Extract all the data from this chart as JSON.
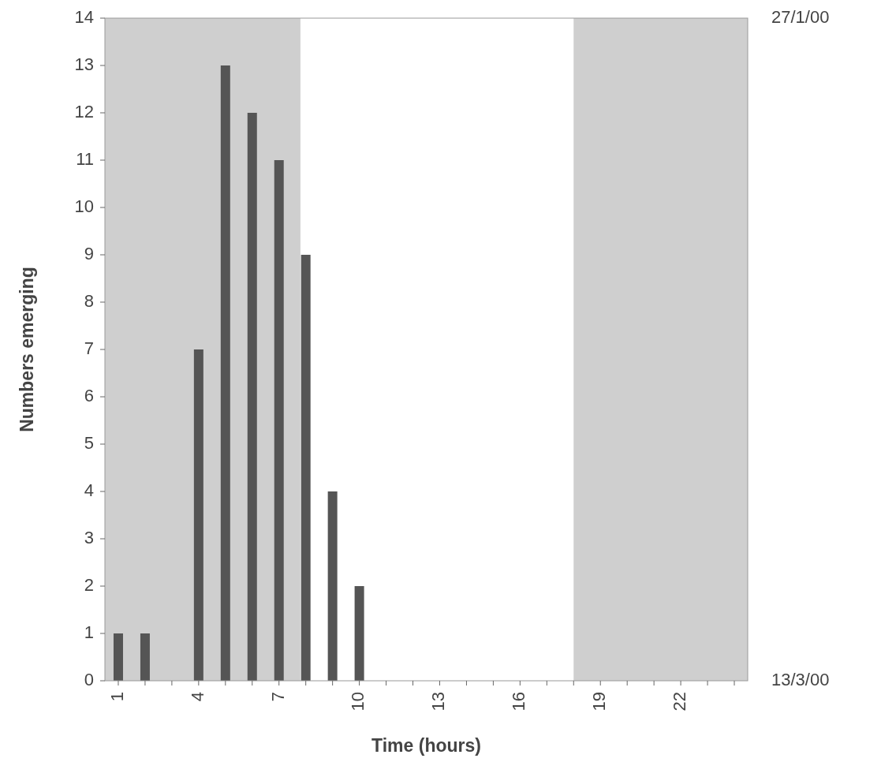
{
  "chart_data": {
    "type": "bar",
    "xlabel": "Time (hours)",
    "ylabel": "Numbers emerging",
    "x": [
      1,
      2,
      4,
      5,
      6,
      7,
      8,
      9,
      10
    ],
    "values": [
      1,
      1,
      7,
      13,
      12,
      11,
      9,
      4,
      2
    ],
    "color": "#555555",
    "xlim": [
      0.5,
      24.5
    ],
    "xticks": [
      1,
      {
        "value": 2,
        "label": null
      },
      {
        "value": 3,
        "label": null
      },
      4,
      {
        "value": 5,
        "label": null
      },
      {
        "value": 6,
        "label": null
      },
      7,
      {
        "value": 8,
        "label": null
      },
      {
        "value": 9,
        "label": null
      },
      10,
      {
        "value": 11,
        "label": null
      },
      {
        "value": 12,
        "label": null
      },
      13,
      {
        "value": 14,
        "label": null
      },
      {
        "value": 15,
        "label": null
      },
      16,
      {
        "value": 17,
        "label": null
      },
      {
        "value": 18,
        "label": null
      },
      19,
      {
        "value": 20,
        "label": null
      },
      {
        "value": 21,
        "label": null
      },
      22,
      {
        "value": 23,
        "label": null
      },
      {
        "value": 24,
        "label": null
      }
    ],
    "ylim": [
      0,
      14
    ],
    "yticks": [
      0,
      1,
      2,
      3,
      4,
      5,
      6,
      7,
      8,
      9,
      10,
      11,
      12,
      13,
      14
    ],
    "bands": [
      {
        "axis": "x",
        "from": 0.5,
        "to": 7.8,
        "color": "#cfcfcf"
      },
      {
        "axis": "x",
        "from": 18,
        "to": 24.5,
        "color": "#cfcfcf"
      }
    ],
    "annotations": [
      "27/1/00",
      "13/3/00"
    ]
  }
}
